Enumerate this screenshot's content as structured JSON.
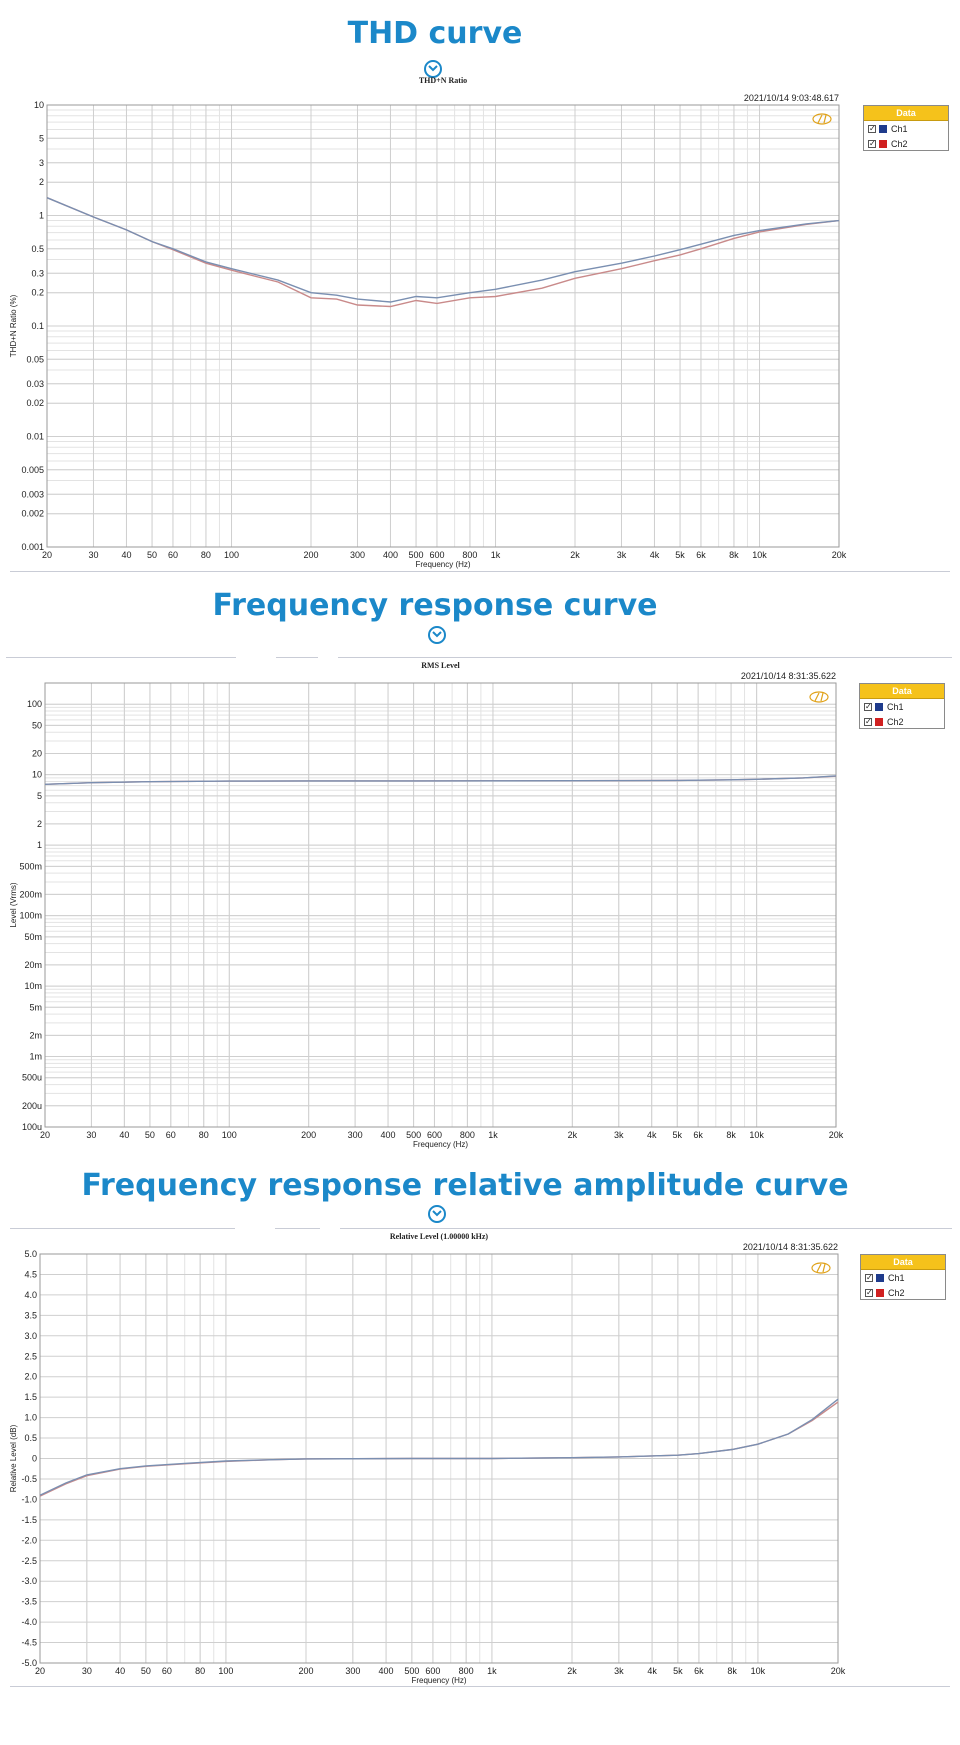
{
  "page": {
    "sections": [
      {
        "title": "THD curve"
      },
      {
        "title": "Frequency response curve"
      },
      {
        "title": "Frequency response relative amplitude curve"
      }
    ]
  },
  "colors": {
    "accent": "#1b88c9",
    "ch1": "#7a8fb1",
    "ch2": "#c98a8a",
    "ch1_swatch": "#1f3b8c",
    "ch2_swatch": "#d02020",
    "grid": "#d8d8d8",
    "legend_header": "#f5c21b"
  },
  "icons": [
    "chevron-down-icon",
    "checkbox-checked-icon",
    "ap-logo-icon"
  ],
  "chart_data": [
    {
      "type": "line",
      "title": "THD+N Ratio",
      "timestamp": "2021/10/14 9:03:48.617",
      "xlabel": "Frequency (Hz)",
      "ylabel": "THD+N Ratio (%)",
      "xscale": "log",
      "yscale": "log",
      "xlim": [
        20,
        20000
      ],
      "ylim": [
        0.001,
        10
      ],
      "grid": true,
      "legend": {
        "title": "Data",
        "position": "right",
        "entries": [
          "Ch1",
          "Ch2"
        ]
      },
      "xticks": [
        {
          "v": 20,
          "label": "20"
        },
        {
          "v": 30,
          "label": "30"
        },
        {
          "v": 40,
          "label": "40"
        },
        {
          "v": 50,
          "label": "50"
        },
        {
          "v": 60,
          "label": "60"
        },
        {
          "v": 80,
          "label": "80"
        },
        {
          "v": 100,
          "label": "100"
        },
        {
          "v": 200,
          "label": "200"
        },
        {
          "v": 300,
          "label": "300"
        },
        {
          "v": 400,
          "label": "400"
        },
        {
          "v": 500,
          "label": "500"
        },
        {
          "v": 600,
          "label": "600"
        },
        {
          "v": 800,
          "label": "800"
        },
        {
          "v": 1000,
          "label": "1k"
        },
        {
          "v": 2000,
          "label": "2k"
        },
        {
          "v": 3000,
          "label": "3k"
        },
        {
          "v": 4000,
          "label": "4k"
        },
        {
          "v": 5000,
          "label": "5k"
        },
        {
          "v": 6000,
          "label": "6k"
        },
        {
          "v": 8000,
          "label": "8k"
        },
        {
          "v": 10000,
          "label": "10k"
        },
        {
          "v": 20000,
          "label": "20k"
        }
      ],
      "yticks": [
        {
          "v": 10,
          "label": "10"
        },
        {
          "v": 5,
          "label": "5"
        },
        {
          "v": 3,
          "label": "3"
        },
        {
          "v": 2,
          "label": "2"
        },
        {
          "v": 1,
          "label": "1"
        },
        {
          "v": 0.5,
          "label": "0.5"
        },
        {
          "v": 0.3,
          "label": "0.3"
        },
        {
          "v": 0.2,
          "label": "0.2"
        },
        {
          "v": 0.1,
          "label": "0.1"
        },
        {
          "v": 0.05,
          "label": "0.05"
        },
        {
          "v": 0.03,
          "label": "0.03"
        },
        {
          "v": 0.02,
          "label": "0.02"
        },
        {
          "v": 0.01,
          "label": "0.01"
        },
        {
          "v": 0.005,
          "label": "0.005"
        },
        {
          "v": 0.003,
          "label": "0.003"
        },
        {
          "v": 0.002,
          "label": "0.002"
        },
        {
          "v": 0.001,
          "label": "0.001"
        }
      ],
      "series": [
        {
          "name": "Ch1",
          "points": [
            [
              20,
              1.45
            ],
            [
              30,
              0.97
            ],
            [
              40,
              0.74
            ],
            [
              50,
              0.58
            ],
            [
              60,
              0.5
            ],
            [
              80,
              0.38
            ],
            [
              100,
              0.33
            ],
            [
              150,
              0.26
            ],
            [
              200,
              0.2
            ],
            [
              250,
              0.19
            ],
            [
              300,
              0.175
            ],
            [
              400,
              0.165
            ],
            [
              500,
              0.185
            ],
            [
              600,
              0.18
            ],
            [
              800,
              0.2
            ],
            [
              1000,
              0.215
            ],
            [
              1500,
              0.26
            ],
            [
              2000,
              0.31
            ],
            [
              3000,
              0.37
            ],
            [
              4000,
              0.43
            ],
            [
              5000,
              0.49
            ],
            [
              6000,
              0.55
            ],
            [
              8000,
              0.66
            ],
            [
              10000,
              0.73
            ],
            [
              15000,
              0.84
            ],
            [
              20000,
              0.9
            ]
          ]
        },
        {
          "name": "Ch2",
          "points": [
            [
              20,
              1.45
            ],
            [
              30,
              0.97
            ],
            [
              40,
              0.74
            ],
            [
              50,
              0.58
            ],
            [
              60,
              0.49
            ],
            [
              80,
              0.37
            ],
            [
              100,
              0.32
            ],
            [
              150,
              0.25
            ],
            [
              200,
              0.18
            ],
            [
              250,
              0.175
            ],
            [
              300,
              0.155
            ],
            [
              400,
              0.15
            ],
            [
              500,
              0.17
            ],
            [
              600,
              0.16
            ],
            [
              800,
              0.18
            ],
            [
              1000,
              0.185
            ],
            [
              1500,
              0.22
            ],
            [
              2000,
              0.27
            ],
            [
              3000,
              0.33
            ],
            [
              4000,
              0.39
            ],
            [
              5000,
              0.44
            ],
            [
              6000,
              0.5
            ],
            [
              8000,
              0.62
            ],
            [
              10000,
              0.71
            ],
            [
              15000,
              0.83
            ],
            [
              20000,
              0.9
            ]
          ]
        }
      ]
    },
    {
      "type": "line",
      "title": "RMS Level",
      "timestamp": "2021/10/14 8:31:35.622",
      "xlabel": "Frequency (Hz)",
      "ylabel": "Level (Vrms)",
      "xscale": "log",
      "yscale": "log",
      "xlim": [
        20,
        20000
      ],
      "ylim": [
        0.0001,
        200
      ],
      "grid": true,
      "legend": {
        "title": "Data",
        "position": "right",
        "entries": [
          "Ch1",
          "Ch2"
        ]
      },
      "xticks": [
        {
          "v": 20,
          "label": "20"
        },
        {
          "v": 30,
          "label": "30"
        },
        {
          "v": 40,
          "label": "40"
        },
        {
          "v": 50,
          "label": "50"
        },
        {
          "v": 60,
          "label": "60"
        },
        {
          "v": 80,
          "label": "80"
        },
        {
          "v": 100,
          "label": "100"
        },
        {
          "v": 200,
          "label": "200"
        },
        {
          "v": 300,
          "label": "300"
        },
        {
          "v": 400,
          "label": "400"
        },
        {
          "v": 500,
          "label": "500"
        },
        {
          "v": 600,
          "label": "600"
        },
        {
          "v": 800,
          "label": "800"
        },
        {
          "v": 1000,
          "label": "1k"
        },
        {
          "v": 2000,
          "label": "2k"
        },
        {
          "v": 3000,
          "label": "3k"
        },
        {
          "v": 4000,
          "label": "4k"
        },
        {
          "v": 5000,
          "label": "5k"
        },
        {
          "v": 6000,
          "label": "6k"
        },
        {
          "v": 8000,
          "label": "8k"
        },
        {
          "v": 10000,
          "label": "10k"
        },
        {
          "v": 20000,
          "label": "20k"
        }
      ],
      "yticks": [
        {
          "v": 100,
          "label": "100"
        },
        {
          "v": 50,
          "label": "50"
        },
        {
          "v": 20,
          "label": "20"
        },
        {
          "v": 10,
          "label": "10"
        },
        {
          "v": 5,
          "label": "5"
        },
        {
          "v": 2,
          "label": "2"
        },
        {
          "v": 1,
          "label": "1"
        },
        {
          "v": 0.5,
          "label": "500m"
        },
        {
          "v": 0.2,
          "label": "200m"
        },
        {
          "v": 0.1,
          "label": "100m"
        },
        {
          "v": 0.05,
          "label": "50m"
        },
        {
          "v": 0.02,
          "label": "20m"
        },
        {
          "v": 0.01,
          "label": "10m"
        },
        {
          "v": 0.005,
          "label": "5m"
        },
        {
          "v": 0.002,
          "label": "2m"
        },
        {
          "v": 0.001,
          "label": "1m"
        },
        {
          "v": 0.0005,
          "label": "500u"
        },
        {
          "v": 0.0002,
          "label": "200u"
        },
        {
          "v": 0.0001,
          "label": "100u"
        }
      ],
      "series": [
        {
          "name": "Ch1",
          "points": [
            [
              20,
              7.3
            ],
            [
              30,
              7.7
            ],
            [
              50,
              7.95
            ],
            [
              100,
              8.1
            ],
            [
              200,
              8.15
            ],
            [
              500,
              8.17
            ],
            [
              1000,
              8.18
            ],
            [
              2000,
              8.2
            ],
            [
              5000,
              8.3
            ],
            [
              8000,
              8.45
            ],
            [
              10000,
              8.6
            ],
            [
              15000,
              9.0
            ],
            [
              20000,
              9.6
            ]
          ]
        },
        {
          "name": "Ch2",
          "points": [
            [
              20,
              7.3
            ],
            [
              30,
              7.7
            ],
            [
              50,
              7.95
            ],
            [
              100,
              8.1
            ],
            [
              200,
              8.15
            ],
            [
              500,
              8.17
            ],
            [
              1000,
              8.18
            ],
            [
              2000,
              8.2
            ],
            [
              5000,
              8.3
            ],
            [
              8000,
              8.45
            ],
            [
              10000,
              8.6
            ],
            [
              15000,
              9.0
            ],
            [
              20000,
              9.5
            ]
          ]
        }
      ]
    },
    {
      "type": "line",
      "title": "Relative Level (1.00000 kHz)",
      "timestamp": "2021/10/14 8:31:35.622",
      "xlabel": "Frequency (Hz)",
      "ylabel": "Relative Level (dB)",
      "xscale": "log",
      "yscale": "linear",
      "xlim": [
        20,
        20000
      ],
      "ylim": [
        -5,
        5
      ],
      "grid": true,
      "legend": {
        "title": "Data",
        "position": "right",
        "entries": [
          "Ch1",
          "Ch2"
        ]
      },
      "xticks": [
        {
          "v": 20,
          "label": "20"
        },
        {
          "v": 30,
          "label": "30"
        },
        {
          "v": 40,
          "label": "40"
        },
        {
          "v": 50,
          "label": "50"
        },
        {
          "v": 60,
          "label": "60"
        },
        {
          "v": 80,
          "label": "80"
        },
        {
          "v": 100,
          "label": "100"
        },
        {
          "v": 200,
          "label": "200"
        },
        {
          "v": 300,
          "label": "300"
        },
        {
          "v": 400,
          "label": "400"
        },
        {
          "v": 500,
          "label": "500"
        },
        {
          "v": 600,
          "label": "600"
        },
        {
          "v": 800,
          "label": "800"
        },
        {
          "v": 1000,
          "label": "1k"
        },
        {
          "v": 2000,
          "label": "2k"
        },
        {
          "v": 3000,
          "label": "3k"
        },
        {
          "v": 4000,
          "label": "4k"
        },
        {
          "v": 5000,
          "label": "5k"
        },
        {
          "v": 6000,
          "label": "6k"
        },
        {
          "v": 8000,
          "label": "8k"
        },
        {
          "v": 10000,
          "label": "10k"
        },
        {
          "v": 20000,
          "label": "20k"
        }
      ],
      "yticks": [
        {
          "v": 5,
          "label": "5.0"
        },
        {
          "v": 4.5,
          "label": "4.5"
        },
        {
          "v": 4,
          "label": "4.0"
        },
        {
          "v": 3.5,
          "label": "3.5"
        },
        {
          "v": 3,
          "label": "3.0"
        },
        {
          "v": 2.5,
          "label": "2.5"
        },
        {
          "v": 2,
          "label": "2.0"
        },
        {
          "v": 1.5,
          "label": "1.5"
        },
        {
          "v": 1,
          "label": "1.0"
        },
        {
          "v": 0.5,
          "label": "0.5"
        },
        {
          "v": 0,
          "label": "0"
        },
        {
          "v": -0.5,
          "label": "-0.5"
        },
        {
          "v": -1,
          "label": "-1.0"
        },
        {
          "v": -1.5,
          "label": "-1.5"
        },
        {
          "v": -2,
          "label": "-2.0"
        },
        {
          "v": -2.5,
          "label": "-2.5"
        },
        {
          "v": -3,
          "label": "-3.0"
        },
        {
          "v": -3.5,
          "label": "-3.5"
        },
        {
          "v": -4,
          "label": "-4.0"
        },
        {
          "v": -4.5,
          "label": "-4.5"
        },
        {
          "v": -5,
          "label": "-5.0"
        }
      ],
      "series": [
        {
          "name": "Ch1",
          "points": [
            [
              20,
              -0.9
            ],
            [
              25,
              -0.6
            ],
            [
              30,
              -0.4
            ],
            [
              40,
              -0.25
            ],
            [
              50,
              -0.18
            ],
            [
              70,
              -0.12
            ],
            [
              100,
              -0.06
            ],
            [
              150,
              -0.03
            ],
            [
              200,
              -0.01
            ],
            [
              500,
              0.0
            ],
            [
              1000,
              0.0
            ],
            [
              2000,
              0.02
            ],
            [
              3000,
              0.04
            ],
            [
              5000,
              0.08
            ],
            [
              6000,
              0.12
            ],
            [
              8000,
              0.22
            ],
            [
              10000,
              0.35
            ],
            [
              13000,
              0.6
            ],
            [
              16000,
              0.95
            ],
            [
              20000,
              1.45
            ]
          ]
        },
        {
          "name": "Ch2",
          "points": [
            [
              20,
              -0.92
            ],
            [
              25,
              -0.62
            ],
            [
              30,
              -0.42
            ],
            [
              40,
              -0.26
            ],
            [
              50,
              -0.19
            ],
            [
              70,
              -0.13
            ],
            [
              100,
              -0.07
            ],
            [
              150,
              -0.03
            ],
            [
              200,
              -0.01
            ],
            [
              500,
              0.0
            ],
            [
              1000,
              0.0
            ],
            [
              2000,
              0.02
            ],
            [
              3000,
              0.04
            ],
            [
              5000,
              0.08
            ],
            [
              6000,
              0.12
            ],
            [
              8000,
              0.22
            ],
            [
              10000,
              0.35
            ],
            [
              13000,
              0.6
            ],
            [
              16000,
              0.93
            ],
            [
              20000,
              1.38
            ]
          ]
        }
      ]
    }
  ]
}
